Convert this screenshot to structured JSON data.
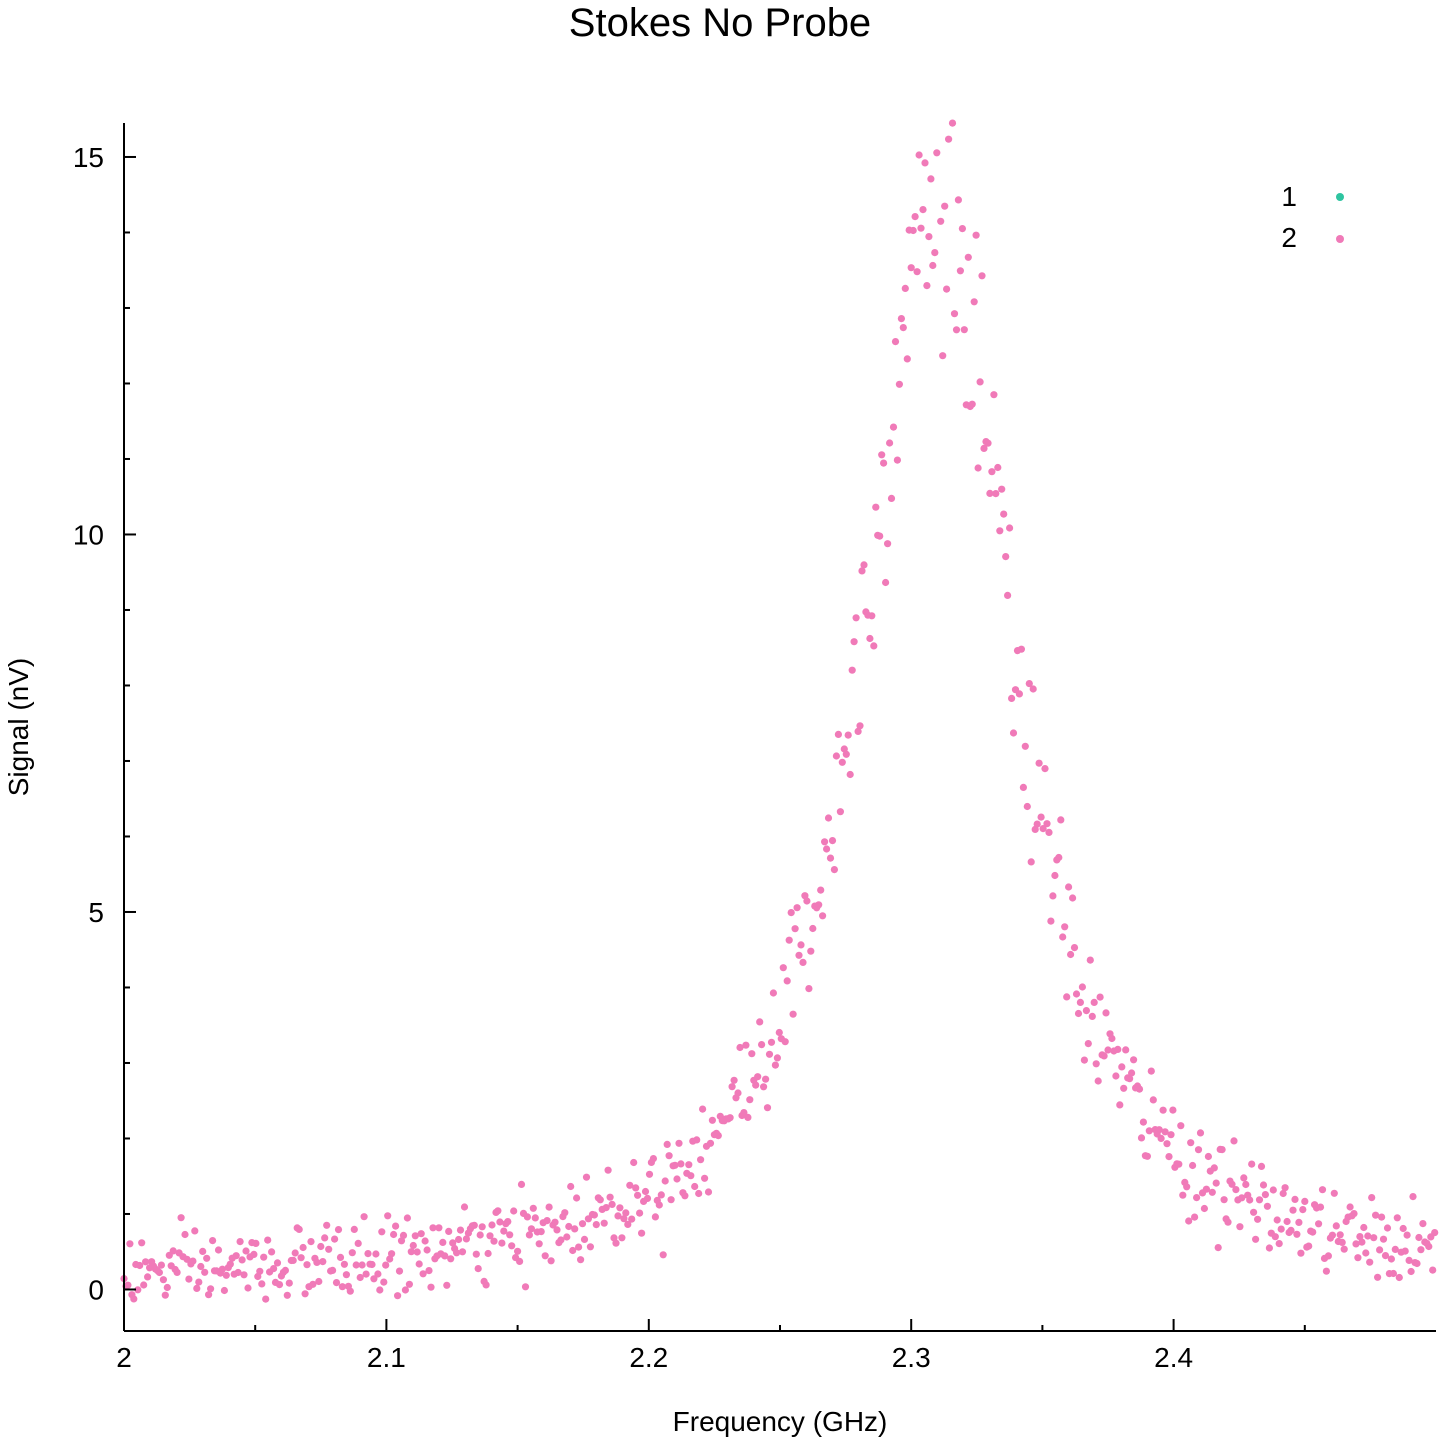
{
  "chart_data": {
    "type": "scatter",
    "title": "Stokes No Probe",
    "xlabel": "Frequency (GHz)",
    "ylabel": "Signal (nV)",
    "xlim": [
      2.0,
      2.5
    ],
    "ylim": [
      -0.55,
      15.45
    ],
    "x_ticks": [
      2.0,
      2.1,
      2.2,
      2.3,
      2.4
    ],
    "x_tick_labels": [
      "2",
      "2.1",
      "2.2",
      "2.3",
      "2.4"
    ],
    "x_minor_step": 0.05,
    "y_ticks": [
      0,
      5,
      10,
      15
    ],
    "y_tick_labels": [
      "0",
      "5",
      "10",
      "15"
    ],
    "y_minor_step": 1,
    "grid": false,
    "legend": "top-right",
    "series": [
      {
        "name": "1",
        "color": "#2ec4a0",
        "model": {
          "type": "lorentzian",
          "amplitude": 14.6,
          "center": 2.3095,
          "hwhm": 0.034,
          "baseline": 0.05,
          "noise_rel": 0.06,
          "noise_abs": 0.22,
          "x_start": 2.0,
          "x_end": 2.5,
          "step": 0.00075
        }
      },
      {
        "name": "2",
        "color": "#f07ab8",
        "model": {
          "type": "lorentzian",
          "amplitude": 14.6,
          "center": 2.3095,
          "hwhm": 0.034,
          "baseline": 0.05,
          "noise_rel": 0.06,
          "noise_abs": 0.22,
          "x_start": 2.0,
          "x_end": 2.5,
          "step": 0.00075
        }
      }
    ]
  }
}
